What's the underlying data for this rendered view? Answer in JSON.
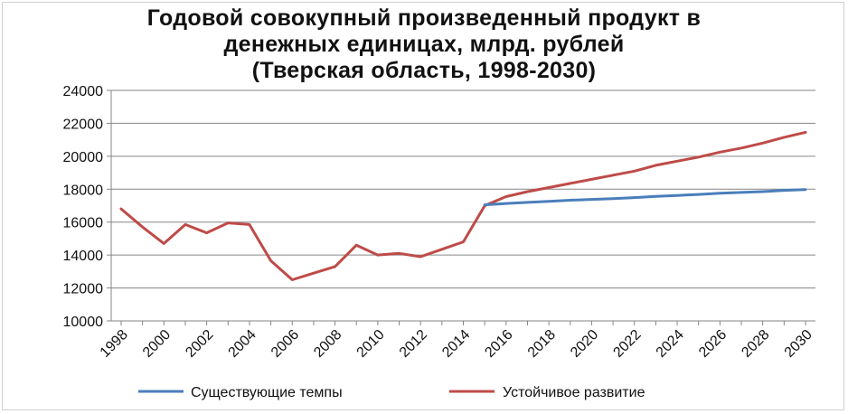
{
  "chart_data": {
    "type": "line",
    "title_lines": [
      "Годовой совокупный произведенный продукт в",
      "денежных единицах, млрд. рублей",
      "(Тверская область, 1998-2030)"
    ],
    "xlabel": "",
    "ylabel": "",
    "ylim": [
      10000,
      24000
    ],
    "xlim": [
      1998,
      2030
    ],
    "y_ticks": [
      "10000",
      "12000",
      "14000",
      "16000",
      "18000",
      "20000",
      "22000",
      "24000"
    ],
    "x_ticks": [
      "1998",
      "2000",
      "2002",
      "2004",
      "2006",
      "2008",
      "2010",
      "2012",
      "2014",
      "2016",
      "2018",
      "2020",
      "2022",
      "2024",
      "2026",
      "2028",
      "2030"
    ],
    "grid": "horizontal",
    "legend_position": "bottom",
    "series": [
      {
        "name": "Существующие темпы",
        "color": "#4a7ebb",
        "x": [
          2015,
          2016,
          2017,
          2018,
          2019,
          2020,
          2021,
          2022,
          2023,
          2024,
          2025,
          2026,
          2027,
          2028,
          2029,
          2030
        ],
        "values": [
          17050,
          17130,
          17200,
          17260,
          17330,
          17380,
          17430,
          17490,
          17560,
          17620,
          17680,
          17750,
          17800,
          17850,
          17930,
          17980
        ]
      },
      {
        "name": "Устойчивое развитие",
        "color": "#be4b48",
        "x": [
          1998,
          1999,
          2000,
          2001,
          2002,
          2003,
          2004,
          2005,
          2006,
          2007,
          2008,
          2009,
          2010,
          2011,
          2012,
          2013,
          2014,
          2015,
          2016,
          2017,
          2018,
          2019,
          2020,
          2021,
          2022,
          2023,
          2024,
          2025,
          2026,
          2027,
          2028,
          2029,
          2030
        ],
        "values": [
          16800,
          15700,
          14700,
          15850,
          15350,
          15950,
          15850,
          13650,
          12500,
          12900,
          13300,
          14600,
          14000,
          14100,
          13900,
          14350,
          14800,
          17000,
          17550,
          17850,
          18100,
          18350,
          18600,
          18850,
          19100,
          19450,
          19700,
          19950,
          20250,
          20500,
          20800,
          21150,
          21450
        ]
      }
    ]
  }
}
